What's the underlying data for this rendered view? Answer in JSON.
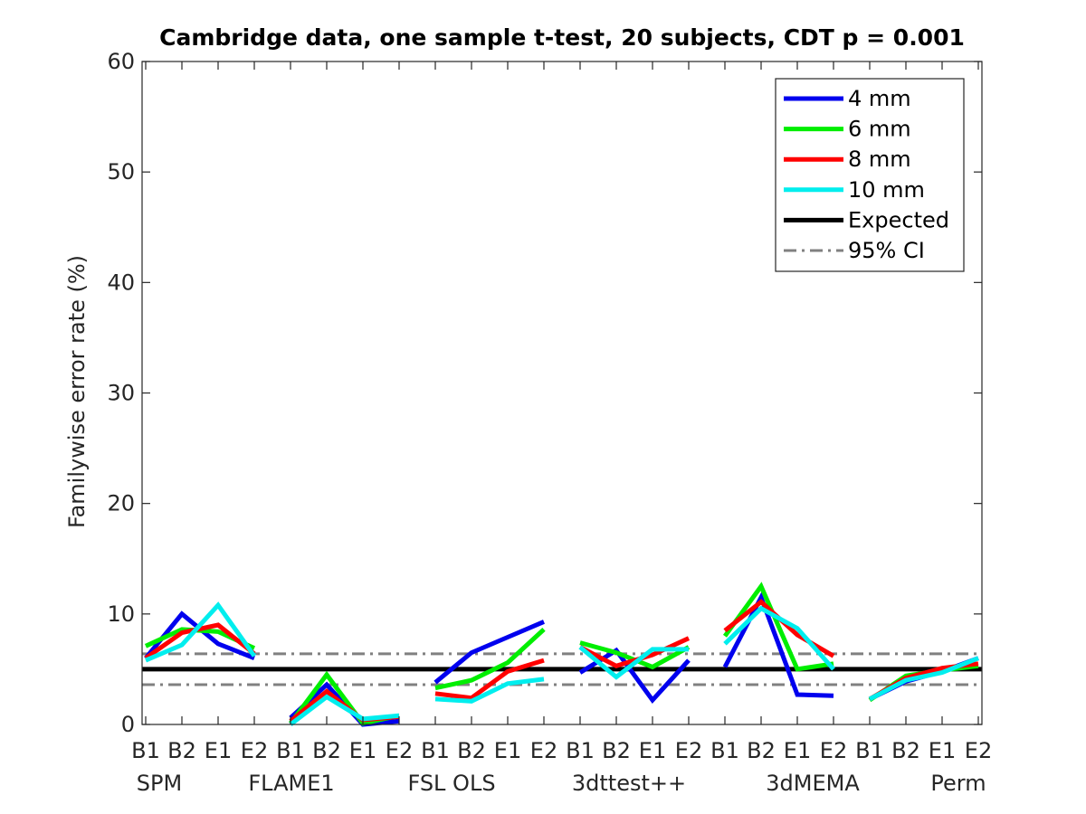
{
  "chart_data": {
    "type": "line",
    "title": "Cambridge data, one sample t-test, 20 subjects, CDT p = 0.001",
    "ylabel": "Familywise error rate (%)",
    "ylim": [
      0,
      60
    ],
    "yticks": [
      0,
      10,
      20,
      30,
      40,
      50,
      60
    ],
    "groups": [
      "SPM",
      "FLAME1",
      "FSL OLS",
      "3dttest++",
      "3dMEMA",
      "Perm"
    ],
    "subcategories": [
      "B1",
      "B2",
      "E1",
      "E2"
    ],
    "legend_position": "top-right",
    "grid": false,
    "series": [
      {
        "name": "4 mm",
        "color": "#0000ee",
        "groups": [
          [
            6.0,
            10.0,
            7.3,
            6.0
          ],
          [
            0.6,
            3.6,
            0.0,
            0.3
          ],
          [
            3.8,
            6.5,
            7.9,
            9.3
          ],
          [
            4.7,
            6.7,
            2.2,
            5.8
          ],
          [
            5.2,
            11.5,
            2.7,
            2.6
          ],
          [
            2.3,
            3.9,
            4.8,
            6.0
          ]
        ]
      },
      {
        "name": "6 mm",
        "color": "#00ee00",
        "groups": [
          [
            7.1,
            8.6,
            8.4,
            6.9
          ],
          [
            0.1,
            4.5,
            0.1,
            0.8
          ],
          [
            3.3,
            4.0,
            5.6,
            8.6
          ],
          [
            7.4,
            6.5,
            5.2,
            7.0
          ],
          [
            8.0,
            12.5,
            5.0,
            5.5
          ],
          [
            2.2,
            4.4,
            4.9,
            5.3
          ]
        ]
      },
      {
        "name": "8 mm",
        "color": "#ff0000",
        "groups": [
          [
            6.0,
            8.3,
            9.0,
            6.4
          ],
          [
            0.3,
            3.0,
            0.4,
            0.7
          ],
          [
            2.8,
            2.4,
            4.8,
            5.8
          ],
          [
            7.0,
            5.3,
            6.3,
            7.8
          ],
          [
            8.5,
            11.1,
            8.1,
            6.2
          ],
          [
            2.3,
            4.2,
            5.1,
            5.5
          ]
        ]
      },
      {
        "name": "10 mm",
        "color": "#00eeee",
        "groups": [
          [
            5.8,
            7.2,
            10.8,
            6.2
          ],
          [
            0.0,
            2.5,
            0.5,
            0.8
          ],
          [
            2.3,
            2.1,
            3.7,
            4.1
          ],
          [
            7.0,
            4.3,
            6.8,
            6.8
          ],
          [
            7.3,
            10.5,
            8.7,
            5.0
          ],
          [
            2.3,
            4.0,
            4.7,
            6.0
          ]
        ]
      },
      {
        "name": "Expected",
        "color": "#000000",
        "value": 5
      },
      {
        "name": "95% CI",
        "color": "#808080",
        "values": [
          3.6,
          6.4
        ]
      }
    ]
  }
}
